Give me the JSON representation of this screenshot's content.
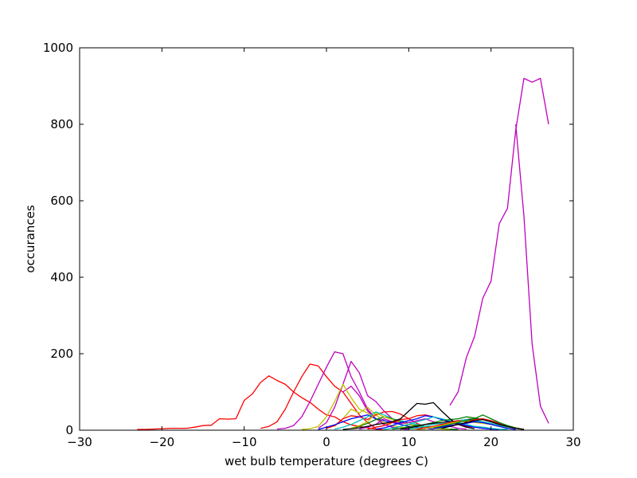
{
  "chart_data": {
    "type": "line",
    "title": "",
    "xlabel": "wet bulb temperature (degrees C)",
    "ylabel": "occurances",
    "xlim": [
      -30,
      30
    ],
    "ylim": [
      0,
      1000
    ],
    "xticks": [
      -30,
      -20,
      -10,
      0,
      10,
      20,
      30
    ],
    "yticks": [
      0,
      200,
      400,
      600,
      800,
      1000
    ],
    "xtick_labels": [
      "−30",
      "−20",
      "−10",
      "0",
      "10",
      "20",
      "30"
    ],
    "ytick_labels": [
      "0",
      "200",
      "400",
      "600",
      "800",
      "1000"
    ],
    "grid": false,
    "legend": "none",
    "series": [
      {
        "color": "#ff0000",
        "x": [
          -23,
          -22,
          -21,
          -20,
          -19,
          -18,
          -17,
          -16,
          -15,
          -14,
          -13,
          -12,
          -11,
          -10,
          -9,
          -8,
          -7,
          -6,
          -5,
          -4,
          -3,
          -2,
          -1,
          0,
          1,
          2,
          3,
          4,
          5,
          6,
          7
        ],
        "y": [
          2,
          2,
          3,
          4,
          5,
          5,
          5,
          8,
          12,
          13,
          30,
          29,
          30,
          78,
          95,
          125,
          142,
          130,
          120,
          100,
          85,
          73,
          55,
          40,
          35,
          22,
          14,
          10,
          6,
          3,
          1
        ]
      },
      {
        "color": "#ff0000",
        "x": [
          -8,
          -7,
          -6,
          -5,
          -4,
          -3,
          -2,
          -1,
          0,
          1,
          2,
          3,
          4,
          5,
          6
        ],
        "y": [
          5,
          10,
          22,
          55,
          100,
          140,
          173,
          168,
          140,
          115,
          100,
          70,
          40,
          20,
          5
        ]
      },
      {
        "color": "#bf00bf",
        "x": [
          -6,
          -5,
          -4,
          -3,
          -2,
          -1,
          0,
          1,
          2,
          3,
          4,
          5,
          6,
          7,
          8,
          9,
          10
        ],
        "y": [
          3,
          5,
          12,
          35,
          75,
          120,
          165,
          205,
          200,
          140,
          100,
          55,
          30,
          15,
          8,
          4,
          2
        ]
      },
      {
        "color": "#bf00bf",
        "x": [
          -1,
          0,
          1,
          2,
          3,
          4,
          5,
          6,
          7,
          8,
          9,
          10,
          11
        ],
        "y": [
          5,
          20,
          60,
          120,
          180,
          150,
          90,
          75,
          50,
          30,
          15,
          8,
          3
        ]
      },
      {
        "color": "#bf00bf",
        "x": [
          2,
          3,
          4,
          5,
          6,
          7,
          8,
          9,
          10
        ],
        "y": [
          100,
          115,
          90,
          50,
          30,
          15,
          8,
          4,
          2
        ]
      },
      {
        "color": "#bfbf00",
        "x": [
          -3,
          -2,
          -1,
          0,
          1,
          2,
          3,
          4,
          5,
          6,
          7,
          8,
          9,
          10,
          11,
          12
        ],
        "y": [
          2,
          4,
          10,
          35,
          75,
          120,
          85,
          55,
          45,
          30,
          20,
          12,
          8,
          5,
          3,
          1
        ]
      },
      {
        "color": "#bfbf00",
        "x": [
          1,
          2,
          3,
          4,
          5,
          6,
          7,
          8,
          9,
          10
        ],
        "y": [
          10,
          30,
          55,
          45,
          60,
          40,
          25,
          20,
          15,
          8
        ]
      },
      {
        "color": "#ff0000",
        "x": [
          0,
          1,
          2,
          3,
          4,
          5,
          6,
          7,
          8,
          9,
          10,
          11,
          12
        ],
        "y": [
          5,
          12,
          30,
          38,
          35,
          28,
          40,
          48,
          49,
          42,
          30,
          18,
          8
        ]
      },
      {
        "color": "#0000ff",
        "x": [
          -1,
          0,
          1,
          2,
          3,
          4,
          5,
          6,
          7,
          8,
          9,
          10,
          11,
          12,
          13
        ],
        "y": [
          2,
          8,
          14,
          22,
          30,
          35,
          40,
          30,
          25,
          20,
          15,
          10,
          8,
          5,
          3
        ]
      },
      {
        "color": "#00bfbf",
        "x": [
          1,
          2,
          3,
          4,
          5,
          6,
          7,
          8,
          9,
          10,
          11,
          12,
          13,
          14,
          15,
          16
        ],
        "y": [
          3,
          8,
          15,
          25,
          35,
          48,
          40,
          30,
          25,
          20,
          15,
          10,
          8,
          5,
          3,
          2
        ]
      },
      {
        "color": "#008000",
        "x": [
          3,
          4,
          5,
          6,
          7,
          8,
          9,
          10,
          11,
          12,
          13,
          14,
          15,
          16
        ],
        "y": [
          4,
          10,
          18,
          28,
          35,
          30,
          22,
          15,
          12,
          8,
          6,
          4,
          3,
          2
        ]
      },
      {
        "color": "#bfbf00",
        "x": [
          3,
          4,
          5,
          6,
          7,
          8,
          9,
          10,
          11,
          12,
          13,
          14,
          15
        ],
        "y": [
          5,
          12,
          22,
          45,
          35,
          28,
          20,
          15,
          10,
          8,
          5,
          3,
          2
        ]
      },
      {
        "color": "#bf00bf",
        "x": [
          4,
          5,
          6,
          7,
          8,
          9,
          10,
          11,
          12,
          13,
          14,
          15,
          16,
          17
        ],
        "y": [
          3,
          8,
          15,
          30,
          22,
          18,
          20,
          25,
          30,
          22,
          15,
          10,
          5,
          3
        ]
      },
      {
        "color": "#ff0000",
        "x": [
          5,
          6,
          7,
          8,
          9,
          10,
          11,
          12,
          13,
          14,
          15,
          16,
          17,
          18,
          19,
          20
        ],
        "y": [
          3,
          8,
          12,
          20,
          28,
          30,
          38,
          40,
          35,
          28,
          20,
          15,
          10,
          8,
          5,
          3
        ]
      },
      {
        "color": "#0000ff",
        "x": [
          6,
          7,
          8,
          9,
          10,
          11,
          12,
          13,
          14,
          15,
          16,
          17,
          18,
          19,
          20,
          21
        ],
        "y": [
          3,
          6,
          12,
          20,
          25,
          30,
          38,
          35,
          28,
          22,
          18,
          12,
          8,
          5,
          3,
          2
        ]
      },
      {
        "color": "#00bfbf",
        "x": [
          7,
          8,
          9,
          10,
          11,
          12,
          13,
          14,
          15,
          16,
          17,
          18,
          19,
          20,
          21,
          22
        ],
        "y": [
          2,
          5,
          10,
          15,
          22,
          28,
          35,
          30,
          25,
          20,
          15,
          10,
          8,
          5,
          3,
          2
        ]
      },
      {
        "color": "#008000",
        "x": [
          8,
          9,
          10,
          11,
          12,
          13,
          14,
          15,
          16,
          17,
          18,
          19,
          20,
          21,
          22,
          23,
          24
        ],
        "y": [
          3,
          5,
          8,
          12,
          15,
          20,
          25,
          28,
          30,
          35,
          32,
          28,
          22,
          15,
          10,
          5,
          2
        ]
      },
      {
        "color": "#000000",
        "x": [
          2,
          3,
          4,
          5,
          6,
          7,
          8,
          9,
          10,
          11,
          12,
          13,
          14,
          15,
          16,
          17,
          18
        ],
        "y": [
          2,
          4,
          6,
          10,
          15,
          18,
          22,
          30,
          50,
          70,
          68,
          72,
          50,
          30,
          15,
          8,
          4
        ]
      },
      {
        "color": "#000000",
        "x": [
          9,
          10,
          11,
          12,
          13,
          14,
          15,
          16,
          17,
          18,
          19,
          20,
          21,
          22,
          23,
          24
        ],
        "y": [
          3,
          6,
          10,
          15,
          18,
          20,
          22,
          25,
          28,
          30,
          28,
          22,
          15,
          10,
          5,
          2
        ]
      },
      {
        "color": "#00bfbf",
        "x": [
          10,
          11,
          12,
          13,
          14,
          15,
          16,
          17,
          18,
          19,
          20,
          21,
          22,
          23
        ],
        "y": [
          3,
          6,
          10,
          15,
          18,
          20,
          25,
          28,
          25,
          22,
          18,
          12,
          8,
          4
        ]
      },
      {
        "color": "#ff0000",
        "x": [
          11,
          12,
          13,
          14,
          15,
          16,
          17,
          18,
          19,
          20,
          21,
          22,
          23,
          24
        ],
        "y": [
          3,
          6,
          10,
          15,
          20,
          25,
          22,
          28,
          30,
          25,
          18,
          12,
          6,
          2
        ]
      },
      {
        "color": "#bfbf00",
        "x": [
          12,
          13,
          14,
          15,
          16,
          17,
          18,
          19,
          20,
          21,
          22,
          23
        ],
        "y": [
          4,
          8,
          12,
          18,
          22,
          25,
          20,
          18,
          15,
          10,
          6,
          3
        ]
      },
      {
        "color": "#008000",
        "x": [
          13,
          14,
          15,
          16,
          17,
          18,
          19,
          20,
          21,
          22,
          23,
          24
        ],
        "y": [
          5,
          10,
          15,
          20,
          25,
          30,
          40,
          30,
          20,
          12,
          6,
          2
        ]
      },
      {
        "color": "#0000ff",
        "x": [
          13,
          14,
          15,
          16,
          17,
          18,
          19,
          20,
          21,
          22,
          23
        ],
        "y": [
          4,
          8,
          12,
          15,
          18,
          22,
          20,
          15,
          10,
          5,
          2
        ]
      },
      {
        "color": "#000000",
        "x": [
          14,
          15,
          16,
          17,
          18,
          19,
          20,
          21,
          22,
          23,
          24
        ],
        "y": [
          5,
          10,
          15,
          20,
          25,
          28,
          22,
          15,
          10,
          5,
          2
        ]
      },
      {
        "color": "#bf00bf",
        "x": [
          15,
          16,
          17,
          18,
          19,
          20,
          21,
          22,
          23,
          24,
          25,
          26,
          27
        ],
        "y": [
          65,
          100,
          190,
          245,
          345,
          390,
          540,
          580,
          785,
          920,
          910,
          920,
          800
        ]
      },
      {
        "color": "#bf00bf",
        "x": [
          23,
          24,
          25,
          26,
          27
        ],
        "y": [
          800,
          560,
          225,
          63,
          18
        ]
      }
    ]
  }
}
